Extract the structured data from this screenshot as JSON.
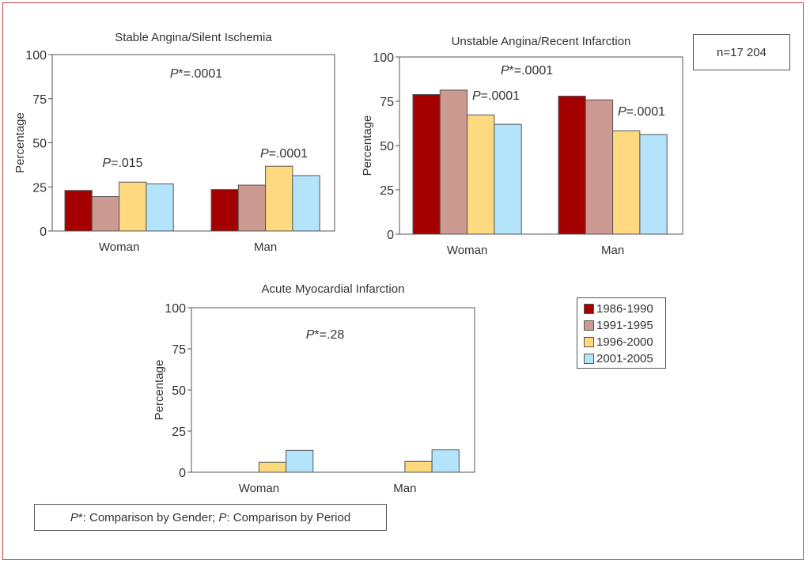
{
  "colors": {
    "1986-1990": "#a50000",
    "1991-1995": "#cc9a90",
    "1996-2000": "#ffd980",
    "2001-2005": "#b3e4fb",
    "frame": "#d0404e"
  },
  "n_label": "n=17 204",
  "footnote": {
    "p_star": "P",
    "p_star_suffix": "*: Comparison by Gender; ",
    "p": "P",
    "p_suffix": ": Comparison by Period"
  },
  "legend": [
    {
      "label": "1986-1990"
    },
    {
      "label": "1991-1995"
    },
    {
      "label": "1996-2000"
    },
    {
      "label": "2001-2005"
    }
  ],
  "chart_data": [
    {
      "type": "bar",
      "title": "Stable Angina/Silent Ischemia",
      "xlabel": "",
      "ylabel": "Percentage",
      "ylim": [
        0,
        100
      ],
      "yticks": [
        0,
        25,
        50,
        75,
        100
      ],
      "categories": [
        "Woman",
        "Man"
      ],
      "series": [
        {
          "name": "1986-1990",
          "values": [
            23,
            23.5
          ]
        },
        {
          "name": "1991-1995",
          "values": [
            19.5,
            26
          ]
        },
        {
          "name": "1996-2000",
          "values": [
            27.7,
            36.7
          ]
        },
        {
          "name": "2001-2005",
          "values": [
            26.7,
            31.4
          ]
        }
      ],
      "annotations": [
        {
          "text_italic": "P",
          "text": "*=.0001",
          "where": "top-center"
        },
        {
          "text_italic": "P",
          "text": "=.015",
          "where": "above Woman"
        },
        {
          "text_italic": "P",
          "text": "=.0001",
          "where": "above Man"
        }
      ]
    },
    {
      "type": "bar",
      "title": "Unstable Angina/Recent Infarction",
      "xlabel": "",
      "ylabel": "Percentage",
      "ylim": [
        0,
        100
      ],
      "yticks": [
        0,
        25,
        50,
        75,
        100
      ],
      "categories": [
        "Woman",
        "Man"
      ],
      "series": [
        {
          "name": "1986-1990",
          "values": [
            78.8,
            77.9
          ]
        },
        {
          "name": "1991-1995",
          "values": [
            81.3,
            75.8
          ]
        },
        {
          "name": "1996-2000",
          "values": [
            67.3,
            58.3
          ]
        },
        {
          "name": "2001-2005",
          "values": [
            62,
            56.2
          ]
        }
      ],
      "annotations": [
        {
          "text_italic": "P",
          "text": "*=.0001",
          "where": "top-center"
        },
        {
          "text_italic": "P",
          "text": "=.0001",
          "where": "above Woman"
        },
        {
          "text_italic": "P",
          "text": "=.0001",
          "where": "above Man"
        }
      ]
    },
    {
      "type": "bar",
      "title": "Acute Myocardial Infarction",
      "xlabel": "",
      "ylabel": "Percentage",
      "ylim": [
        0,
        100
      ],
      "yticks": [
        0,
        25,
        50,
        75,
        100
      ],
      "categories": [
        "Woman",
        "Man"
      ],
      "series": [
        {
          "name": "1986-1990",
          "values": [
            0,
            0
          ]
        },
        {
          "name": "1991-1995",
          "values": [
            0,
            0
          ]
        },
        {
          "name": "1996-2000",
          "values": [
            6.1,
            6.6
          ]
        },
        {
          "name": "2001-2005",
          "values": [
            13.3,
            13.6
          ]
        }
      ],
      "annotations": [
        {
          "text_italic": "P",
          "text": "*=.28",
          "where": "top-center"
        }
      ]
    }
  ]
}
